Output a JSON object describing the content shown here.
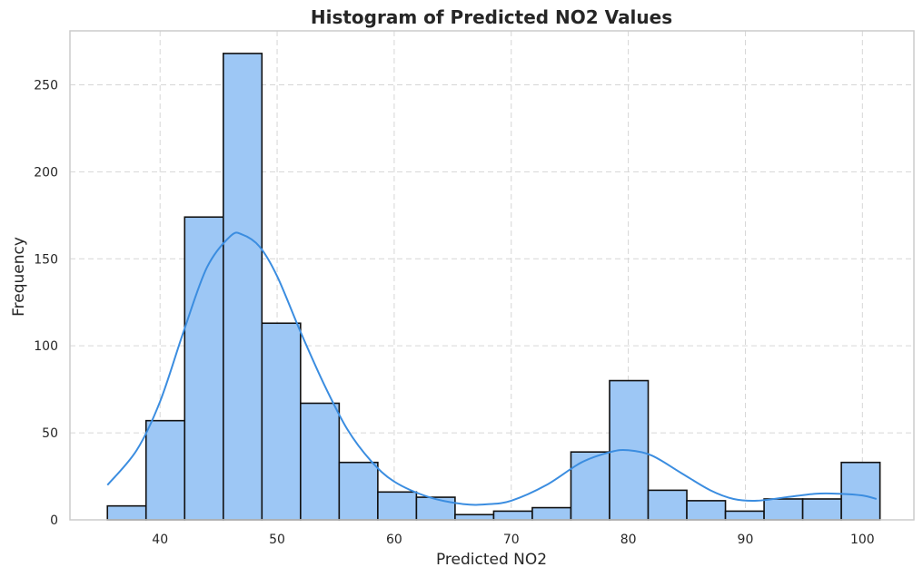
{
  "chart_data": {
    "type": "bar",
    "title": "Histogram of Predicted NO2 Values",
    "xlabel": "Predicted NO2",
    "ylabel": "Frequency",
    "xlim": [
      32.3,
      104.4
    ],
    "ylim": [
      0,
      281
    ],
    "xticks": [
      40,
      50,
      60,
      70,
      80,
      90,
      100
    ],
    "yticks": [
      0,
      50,
      100,
      150,
      200,
      250
    ],
    "grid": true,
    "legend": "none",
    "colors": {
      "bar_fill": "#9dc7f5",
      "bar_edge": "#111111",
      "kde_line": "#3b8de0",
      "grid": "#d6d6d6",
      "frame": "#cccccc"
    },
    "bins": [
      {
        "x0": 35.5,
        "x1": 38.8,
        "count": 8
      },
      {
        "x0": 38.8,
        "x1": 42.1,
        "count": 57
      },
      {
        "x0": 42.1,
        "x1": 45.4,
        "count": 174
      },
      {
        "x0": 45.4,
        "x1": 48.7,
        "count": 268
      },
      {
        "x0": 48.7,
        "x1": 52.0,
        "count": 113
      },
      {
        "x0": 52.0,
        "x1": 55.3,
        "count": 67
      },
      {
        "x0": 55.3,
        "x1": 58.6,
        "count": 33
      },
      {
        "x0": 58.6,
        "x1": 61.9,
        "count": 16
      },
      {
        "x0": 61.9,
        "x1": 65.2,
        "count": 13
      },
      {
        "x0": 65.2,
        "x1": 68.5,
        "count": 3
      },
      {
        "x0": 68.5,
        "x1": 71.8,
        "count": 5
      },
      {
        "x0": 71.8,
        "x1": 75.1,
        "count": 7
      },
      {
        "x0": 75.1,
        "x1": 78.4,
        "count": 39
      },
      {
        "x0": 78.4,
        "x1": 81.7,
        "count": 80
      },
      {
        "x0": 81.7,
        "x1": 85.0,
        "count": 17
      },
      {
        "x0": 85.0,
        "x1": 88.3,
        "count": 11
      },
      {
        "x0": 88.3,
        "x1": 91.6,
        "count": 5
      },
      {
        "x0": 91.6,
        "x1": 94.9,
        "count": 12
      },
      {
        "x0": 94.9,
        "x1": 98.2,
        "count": 12
      },
      {
        "x0": 98.2,
        "x1": 101.5,
        "count": 33
      }
    ],
    "kde": [
      {
        "x": 35.5,
        "y": 20
      },
      {
        "x": 38.0,
        "y": 40
      },
      {
        "x": 40.0,
        "y": 68
      },
      {
        "x": 42.0,
        "y": 108
      },
      {
        "x": 44.0,
        "y": 145
      },
      {
        "x": 46.0,
        "y": 163
      },
      {
        "x": 47.0,
        "y": 164
      },
      {
        "x": 48.5,
        "y": 157
      },
      {
        "x": 50.0,
        "y": 140
      },
      {
        "x": 52.0,
        "y": 108
      },
      {
        "x": 54.0,
        "y": 78
      },
      {
        "x": 56.0,
        "y": 52
      },
      {
        "x": 58.0,
        "y": 34
      },
      {
        "x": 60.0,
        "y": 22
      },
      {
        "x": 63.0,
        "y": 13
      },
      {
        "x": 66.0,
        "y": 9
      },
      {
        "x": 68.0,
        "y": 9
      },
      {
        "x": 70.0,
        "y": 11
      },
      {
        "x": 73.0,
        "y": 20
      },
      {
        "x": 76.0,
        "y": 33
      },
      {
        "x": 78.5,
        "y": 39
      },
      {
        "x": 80.0,
        "y": 40
      },
      {
        "x": 82.0,
        "y": 37
      },
      {
        "x": 84.5,
        "y": 27
      },
      {
        "x": 87.0,
        "y": 17
      },
      {
        "x": 89.0,
        "y": 12
      },
      {
        "x": 91.0,
        "y": 11
      },
      {
        "x": 93.5,
        "y": 13
      },
      {
        "x": 96.0,
        "y": 15
      },
      {
        "x": 98.0,
        "y": 15
      },
      {
        "x": 100.0,
        "y": 14
      },
      {
        "x": 101.2,
        "y": 12
      }
    ]
  }
}
